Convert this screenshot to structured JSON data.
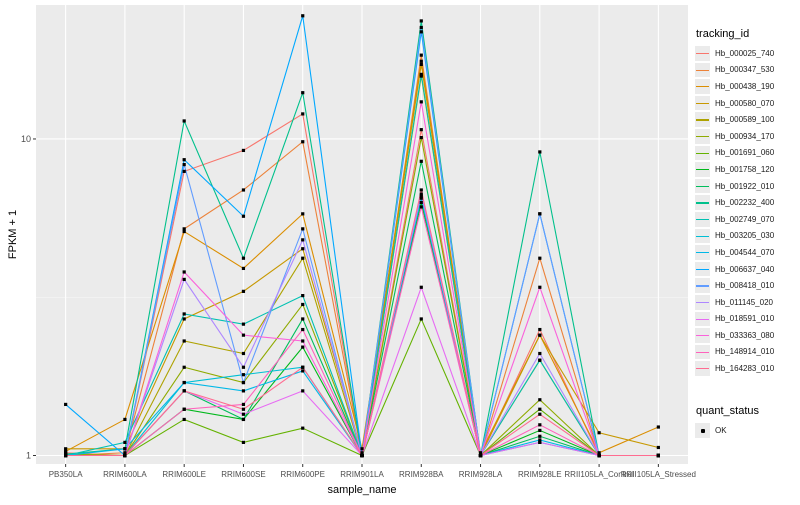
{
  "chart_data": {
    "type": "line",
    "xlabel": "sample_name",
    "ylabel": "FPKM + 1",
    "y_scale": "log10",
    "ylim": [
      0.94,
      26.5
    ],
    "y_ticks": [
      1,
      10
    ],
    "y_minor_ticks": [
      3.16
    ],
    "categories": [
      "PB350LA",
      "RRIM600LA",
      "RRIM600LE",
      "RRIM600SE",
      "RRIM600PE",
      "RRIM901LA",
      "RRIM928BA",
      "RRIM928LA",
      "RRIM928LE",
      "RRII105LA_Control",
      "RRII105LA_Stressed"
    ],
    "legend": {
      "title": "tracking_id",
      "placement": "right"
    },
    "legend2": {
      "title": "quant_status",
      "items": [
        {
          "label": "OK",
          "shape": "square"
        }
      ]
    },
    "panel_background": "#ebebeb",
    "grid": true,
    "series": [
      {
        "name": "Hb_000025_740",
        "color": "#f8766d",
        "values": [
          1.02,
          1.0,
          7.9,
          9.2,
          12.0,
          1.0,
          10.7,
          1.0,
          2.5,
          1.0,
          1.0
        ]
      },
      {
        "name": "Hb_000347_530",
        "color": "#ec8239",
        "values": [
          1.0,
          1.02,
          5.2,
          6.9,
          9.8,
          1.0,
          18.4,
          1.0,
          4.2,
          1.0,
          1.0
        ]
      },
      {
        "name": "Hb_000438_190",
        "color": "#db8e00",
        "values": [
          1.03,
          1.3,
          5.1,
          3.9,
          5.8,
          1.05,
          17.6,
          1.02,
          2.4,
          1.02,
          1.23
        ]
      },
      {
        "name": "Hb_000580_070",
        "color": "#c79800",
        "values": [
          1.05,
          1.05,
          2.7,
          3.3,
          4.5,
          1.02,
          17.2,
          1.0,
          2.4,
          1.18,
          1.06
        ]
      },
      {
        "name": "Hb_000589_100",
        "color": "#aea200",
        "values": [
          1.0,
          1.0,
          2.3,
          2.1,
          4.2,
          1.0,
          15.8,
          1.0,
          2.0,
          1.0,
          1.0
        ]
      },
      {
        "name": "Hb_000934_170",
        "color": "#8faa00",
        "values": [
          1.01,
          1.0,
          1.9,
          1.7,
          3.0,
          1.0,
          10.1,
          1.0,
          1.5,
          1.0,
          1.0
        ]
      },
      {
        "name": "Hb_001691_060",
        "color": "#64b200",
        "values": [
          1.0,
          1.0,
          1.3,
          1.1,
          1.22,
          1.0,
          2.7,
          1.0,
          1.4,
          1.0,
          1.0
        ]
      },
      {
        "name": "Hb_001758_120",
        "color": "#00b81b",
        "values": [
          1.0,
          1.0,
          1.4,
          1.3,
          2.2,
          1.0,
          6.3,
          1.0,
          1.2,
          1.0,
          1.0
        ]
      },
      {
        "name": "Hb_001922_010",
        "color": "#00bd5c",
        "values": [
          1.0,
          1.0,
          1.6,
          1.3,
          2.7,
          1.0,
          8.5,
          1.0,
          1.15,
          1.0,
          1.0
        ]
      },
      {
        "name": "Hb_002232_400",
        "color": "#00c08b",
        "values": [
          1.01,
          1.05,
          11.4,
          4.2,
          14.0,
          1.0,
          23.6,
          1.0,
          9.1,
          1.0,
          1.0
        ]
      },
      {
        "name": "Hb_002749_070",
        "color": "#00c1b2",
        "values": [
          1.0,
          1.1,
          2.8,
          2.6,
          3.2,
          1.0,
          16.0,
          1.0,
          2.0,
          1.0,
          1.0
        ]
      },
      {
        "name": "Hb_003205_030",
        "color": "#00bfd4",
        "values": [
          1.0,
          1.0,
          1.7,
          1.8,
          1.9,
          1.0,
          6.5,
          1.0,
          1.1,
          1.0,
          1.0
        ]
      },
      {
        "name": "Hb_004544_070",
        "color": "#00b8e7",
        "values": [
          1.0,
          1.05,
          1.7,
          1.6,
          1.85,
          1.0,
          6.6,
          1.0,
          1.12,
          1.0,
          1.0
        ]
      },
      {
        "name": "Hb_006637_040",
        "color": "#00a8ff",
        "values": [
          1.45,
          1.0,
          8.6,
          5.7,
          24.5,
          1.0,
          21.8,
          1.0,
          5.8,
          1.0,
          1.0
        ]
      },
      {
        "name": "Hb_008418_010",
        "color": "#619cff",
        "values": [
          1.0,
          1.0,
          8.3,
          1.7,
          5.2,
          1.0,
          22.5,
          1.0,
          5.8,
          1.0,
          1.0
        ]
      },
      {
        "name": "Hb_011145_020",
        "color": "#ae87ff",
        "values": [
          1.0,
          1.0,
          3.6,
          1.9,
          4.8,
          1.0,
          6.7,
          1.0,
          2.1,
          1.0,
          1.0
        ]
      },
      {
        "name": "Hb_018591_010",
        "color": "#e76bf3",
        "values": [
          1.0,
          1.0,
          1.6,
          1.35,
          1.6,
          1.0,
          3.4,
          1.0,
          1.1,
          1.0,
          1.0
        ]
      },
      {
        "name": "Hb_033363_080",
        "color": "#fa62db",
        "values": [
          1.0,
          1.0,
          3.8,
          2.4,
          2.3,
          1.0,
          13.1,
          1.0,
          3.4,
          1.0,
          1.0
        ]
      },
      {
        "name": "Hb_148914_010",
        "color": "#ff62bc",
        "values": [
          1.0,
          1.0,
          1.4,
          1.45,
          2.5,
          1.0,
          6.1,
          1.0,
          1.25,
          1.0,
          1.0
        ]
      },
      {
        "name": "Hb_164283_010",
        "color": "#ff6c91",
        "values": [
          1.0,
          1.0,
          1.6,
          1.4,
          1.9,
          1.0,
          6.9,
          1.0,
          1.35,
          1.0,
          1.0
        ]
      }
    ]
  }
}
